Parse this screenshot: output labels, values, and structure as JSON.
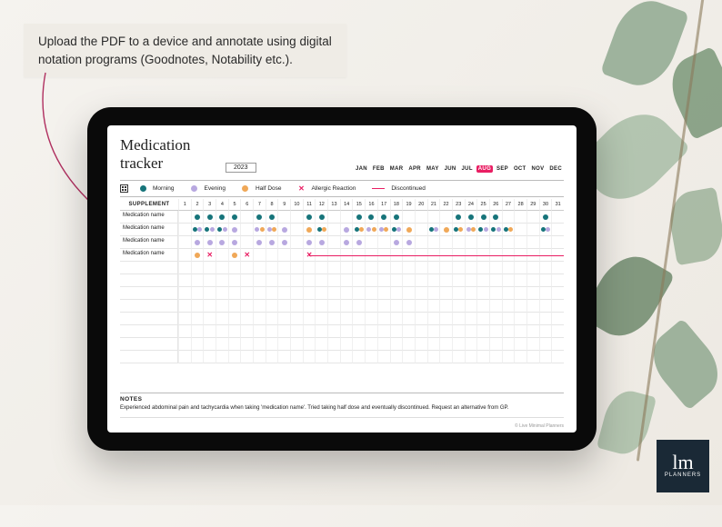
{
  "caption": {
    "line1": "Upload the PDF to a device and annotate using digital",
    "line2": "notation programs (Goodnotes, Notability etc.)."
  },
  "tracker": {
    "title": "Medication tracker",
    "year": "2023",
    "months": [
      "JAN",
      "FEB",
      "MAR",
      "APR",
      "MAY",
      "JUN",
      "JUL",
      "AUG",
      "SEP",
      "OCT",
      "NOV",
      "DEC"
    ],
    "active_month_index": 7,
    "legend": {
      "morning": {
        "label": "Morning",
        "color": "#16747a"
      },
      "evening": {
        "label": "Evening",
        "color": "#b8a8e0"
      },
      "halfdose": {
        "label": "Half Dose",
        "color": "#f0a858"
      },
      "allergic": {
        "label": "Allergic Reaction",
        "color": "#e91e63"
      },
      "discontinued": {
        "label": "Discontinued",
        "color": "#e91e63"
      }
    },
    "supplement_header": "SUPPLEMENT",
    "days": 31,
    "colors": {
      "morning": "#16747a",
      "evening": "#b8a8e0",
      "halfdose": "#f0a858",
      "allergic": "#e91e63",
      "grid_line": "#e5e5e5",
      "grid_line_light": "#f0f0f0",
      "border": "#bbbbbb"
    },
    "rows": [
      {
        "label": "Medication name",
        "marks": {
          "2": [
            "m"
          ],
          "3": [
            "m"
          ],
          "4": [
            "m"
          ],
          "5": [
            "m"
          ],
          "7": [
            "m"
          ],
          "8": [
            "m"
          ],
          "11": [
            "m"
          ],
          "12": [
            "m"
          ],
          "15": [
            "m"
          ],
          "16": [
            "m"
          ],
          "17": [
            "m"
          ],
          "18": [
            "m"
          ],
          "23": [
            "m"
          ],
          "24": [
            "m"
          ],
          "25": [
            "m"
          ],
          "26": [
            "m"
          ],
          "30": [
            "m"
          ]
        }
      },
      {
        "label": "Medication name",
        "marks": {
          "2": [
            "m",
            "e"
          ],
          "3": [
            "m",
            "e"
          ],
          "4": [
            "m",
            "e"
          ],
          "5": [
            "e"
          ],
          "7": [
            "e",
            "h"
          ],
          "8": [
            "e",
            "h"
          ],
          "9": [
            "e"
          ],
          "11": [
            "h"
          ],
          "12": [
            "m",
            "h"
          ],
          "14": [
            "e"
          ],
          "15": [
            "m",
            "h"
          ],
          "16": [
            "e",
            "h"
          ],
          "17": [
            "e",
            "h"
          ],
          "18": [
            "m",
            "e"
          ],
          "19": [
            "h"
          ],
          "21": [
            "m",
            "e"
          ],
          "22": [
            "h"
          ],
          "23": [
            "m",
            "h"
          ],
          "24": [
            "e",
            "h"
          ],
          "25": [
            "m",
            "e"
          ],
          "26": [
            "m",
            "e"
          ],
          "27": [
            "m",
            "h"
          ],
          "30": [
            "m",
            "e"
          ]
        }
      },
      {
        "label": "Medication name",
        "marks": {
          "2": [
            "e"
          ],
          "3": [
            "e"
          ],
          "4": [
            "e"
          ],
          "5": [
            "e"
          ],
          "7": [
            "e"
          ],
          "8": [
            "e"
          ],
          "9": [
            "e"
          ],
          "11": [
            "e"
          ],
          "12": [
            "e"
          ],
          "14": [
            "e"
          ],
          "15": [
            "e"
          ],
          "18": [
            "e"
          ],
          "19": [
            "e"
          ]
        }
      },
      {
        "label": "Medication name",
        "marks": {
          "2": [
            "h"
          ],
          "3": [
            "x"
          ],
          "5": [
            "h"
          ],
          "6": [
            "x"
          ],
          "11": [
            "x"
          ]
        },
        "discontinued_from": 11
      },
      {
        "label": ""
      },
      {
        "label": ""
      },
      {
        "label": ""
      },
      {
        "label": ""
      },
      {
        "label": ""
      },
      {
        "label": ""
      },
      {
        "label": ""
      },
      {
        "label": ""
      }
    ],
    "notes": {
      "header": "NOTES",
      "body": "Experienced abdominal pain and tachycardia when taking 'medication name'. Tried taking half dose and eventually discontinued. Request an alternative from GP."
    },
    "copyright": "© Live Minimal Planners"
  },
  "logo": {
    "initials": "lm",
    "sub": "PLANNERS"
  },
  "leaves": {
    "colors": [
      "#8fa88f",
      "#7a9678",
      "#a8bda6",
      "#6e8a6c",
      "#9db39a"
    ]
  }
}
